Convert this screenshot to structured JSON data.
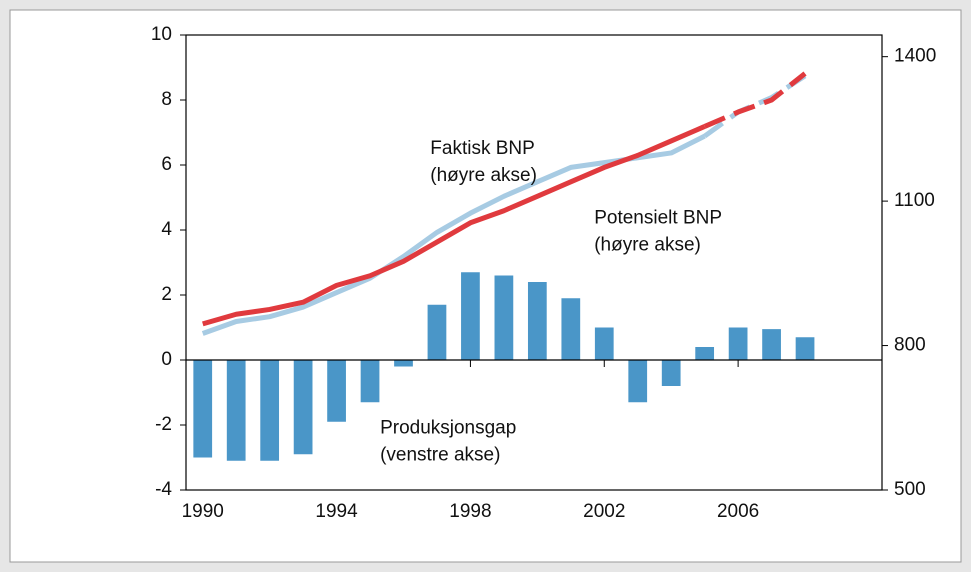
{
  "chart_data": {
    "type": "bar-line",
    "x": [
      1990,
      1991,
      1992,
      1993,
      1994,
      1995,
      1996,
      1997,
      1998,
      1999,
      2000,
      2001,
      2002,
      2003,
      2004,
      2005,
      2006,
      2007,
      2008
    ],
    "series": [
      {
        "name": "Produksjonsgap",
        "type": "bar",
        "color": "#4a96c8",
        "axis": "y",
        "values": [
          -3.0,
          -3.1,
          -3.1,
          -2.9,
          -1.9,
          -1.3,
          -0.2,
          1.7,
          2.7,
          2.6,
          2.4,
          1.9,
          1.0,
          -1.3,
          -0.8,
          0.4,
          1.0,
          0.95,
          0.7
        ]
      },
      {
        "name": "Faktisk BNP",
        "type": "line",
        "color": "#a7cbe3",
        "axis": "y2",
        "values": [
          825,
          850,
          860,
          880,
          910,
          940,
          985,
          1035,
          1075,
          1110,
          1140,
          1170,
          1180,
          1190,
          1200,
          1235,
          1285,
          1315,
          1360
        ]
      },
      {
        "name": "Potensielt BNP",
        "type": "line",
        "color": "#e03a3e",
        "axis": "y2",
        "values": [
          845,
          865,
          875,
          890,
          925,
          945,
          975,
          1015,
          1055,
          1080,
          1110,
          1140,
          1170,
          1195,
          1225,
          1255,
          1285,
          1310,
          1365
        ]
      }
    ],
    "dashed_from": 2005,
    "annotations": [
      {
        "lines": [
          "Faktisk BNP",
          "(høyre akse)"
        ],
        "x": 1996.8,
        "y": 6.5
      },
      {
        "lines": [
          "Potensielt BNP",
          "(høyre akse)"
        ],
        "x": 2001.7,
        "y": 4.35
      },
      {
        "lines": [
          "Produksjonsgap",
          "(venstre akse)"
        ],
        "x": 1995.3,
        "y": -2.1
      }
    ],
    "xlim": [
      1989.5,
      2010.3
    ],
    "xticks": [
      1990,
      1994,
      1998,
      2002,
      2006
    ],
    "ylim": [
      -4,
      10
    ],
    "yticks": [
      -4,
      -2,
      0,
      2,
      4,
      6,
      8,
      10
    ],
    "y2lim": [
      500,
      1445
    ],
    "y2ticks": [
      500,
      800,
      1100,
      1400
    ]
  }
}
